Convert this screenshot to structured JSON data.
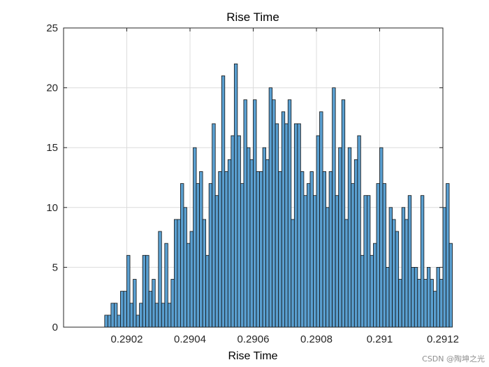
{
  "chart_data": {
    "type": "bar",
    "title": "Rise Time",
    "xlabel": "Rise Time",
    "ylabel": "",
    "xlim": [
      0.29,
      0.2912
    ],
    "ylim": [
      0,
      25
    ],
    "x_ticks": [
      0.2902,
      0.2904,
      0.2906,
      0.2908,
      0.291,
      0.2912
    ],
    "x_tick_labels": [
      "0.2902",
      "0.2904",
      "0.2906",
      "0.2908",
      "0.291",
      "0.2912"
    ],
    "y_ticks": [
      0,
      5,
      10,
      15,
      20,
      25
    ],
    "y_tick_labels": [
      "0",
      "5",
      "10",
      "15",
      "20",
      "25"
    ],
    "grid": true,
    "bar_color": "#5a9fd0",
    "edge_color": "#111111",
    "bin_start": 0.29013,
    "bin_width": 1e-05,
    "counts": [
      1,
      1,
      2,
      2,
      1,
      3,
      3,
      6,
      2,
      4,
      1,
      2,
      6,
      6,
      3,
      4,
      2,
      8,
      2,
      7,
      2,
      4,
      9,
      9,
      12,
      10,
      7,
      8,
      15,
      12,
      13,
      9,
      6,
      12,
      17,
      11,
      13,
      21,
      13,
      14,
      16,
      22,
      16,
      12,
      19,
      15,
      14,
      19,
      13,
      13,
      15,
      14,
      20,
      19,
      17,
      13,
      18,
      17,
      19,
      9,
      17,
      17,
      13,
      11,
      12,
      13,
      11,
      16,
      18,
      13,
      10,
      13,
      20,
      11,
      15,
      19,
      9,
      15,
      12,
      14,
      16,
      6,
      11,
      11,
      6,
      7,
      12,
      15,
      12,
      5,
      10,
      9,
      8,
      4,
      10,
      9,
      11,
      5,
      5,
      4,
      11,
      4,
      5,
      4,
      3,
      5,
      4,
      10,
      12,
      7
    ]
  },
  "watermark": "CSDN @陶坤之光"
}
